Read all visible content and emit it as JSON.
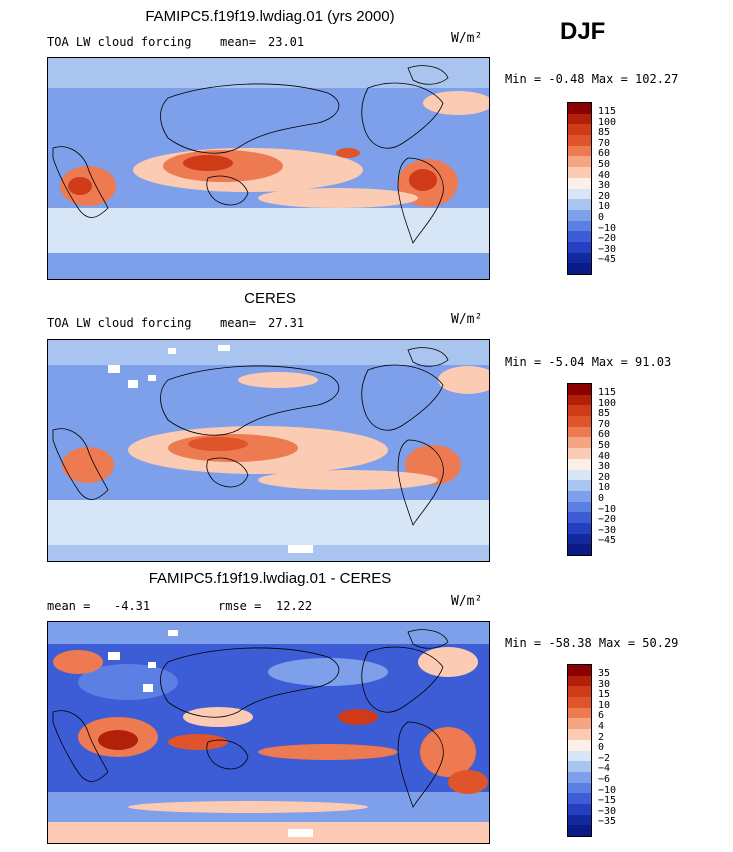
{
  "season": "DJF",
  "panels": [
    {
      "title": "FAMIPC5.f19f19.lwdiag.01 (yrs 2000)",
      "left_label": "TOA LW cloud forcing",
      "stat_label": "mean=",
      "stat_value": "23.01",
      "stat2_label": "",
      "stat2_value": "",
      "units": "W/m²",
      "minmax": "Min =  -0.48 Max = 102.27",
      "levels": [
        "115",
        "100",
        "85",
        "70",
        "60",
        "50",
        "40",
        "30",
        "20",
        "10",
        "0",
        "−10",
        "−20",
        "−30",
        "−45"
      ]
    },
    {
      "title": "CERES",
      "left_label": "TOA LW cloud forcing",
      "stat_label": "mean=",
      "stat_value": "27.31",
      "stat2_label": "",
      "stat2_value": "",
      "units": "W/m²",
      "minmax": "Min =  -5.04 Max =  91.03",
      "levels": [
        "115",
        "100",
        "85",
        "70",
        "60",
        "50",
        "40",
        "30",
        "20",
        "10",
        "0",
        "−10",
        "−20",
        "−30",
        "−45"
      ]
    },
    {
      "title": "FAMIPC5.f19f19.lwdiag.01 - CERES",
      "left_label": "mean =",
      "stat_label": "",
      "stat_value": "-4.31",
      "stat2_label": "rmse =",
      "stat2_value": "12.22",
      "units": "W/m²",
      "minmax": "Min = -58.38 Max =  50.29",
      "levels": [
        "35",
        "30",
        "15",
        "10",
        "6",
        "4",
        "2",
        "0",
        "−2",
        "−4",
        "−6",
        "−10",
        "−15",
        "−30",
        "−35"
      ]
    }
  ],
  "colors": {
    "abs_scale": [
      "#8b0000",
      "#b3200a",
      "#cf3a17",
      "#e0542b",
      "#ee7a52",
      "#f6a582",
      "#fbcbb3",
      "#fbefe8",
      "#d6e6f6",
      "#a9c4ee",
      "#7e9fe9",
      "#5b7fe3",
      "#3c5dd6",
      "#2440c1",
      "#122a9e",
      "#0a1a86"
    ],
    "diff_scale": [
      "#8b0000",
      "#b3200a",
      "#cf3a17",
      "#e0542b",
      "#ee7a52",
      "#f6a582",
      "#fbcbb3",
      "#fbefe8",
      "#d6e6f6",
      "#a9c4ee",
      "#7e9fe9",
      "#5b7fe3",
      "#3c5dd6",
      "#2440c1",
      "#122a9e",
      "#0a1a86"
    ]
  }
}
